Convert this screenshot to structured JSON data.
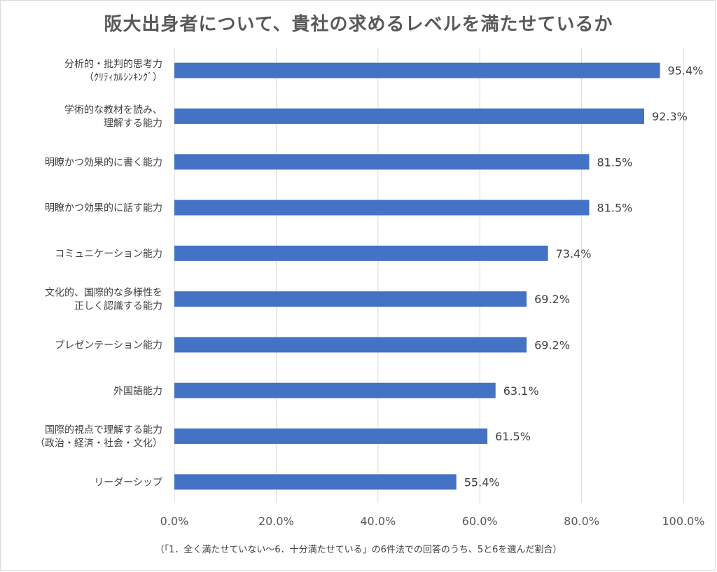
{
  "chart_data": {
    "type": "bar",
    "orientation": "horizontal",
    "title": "阪大出身者について、貴社の求めるレベルを満たせているか",
    "footnote": "（「1．全く満たせていない～6．十分満たせている」の6件法での回答のうち、5と6を選んだ割合）",
    "categories": [
      [
        "分析的・批判的思考力",
        "（ｸﾘﾃｨｶﾙｼﾝｷﾝｸﾞ）"
      ],
      [
        "学術的な教材を読み、",
        "理解する能力"
      ],
      [
        "明瞭かつ効果的に書く能力"
      ],
      [
        "明瞭かつ効果的に話す能力"
      ],
      [
        "コミュニケーション能力"
      ],
      [
        "文化的、国際的な多様性を",
        "正しく認識する能力"
      ],
      [
        "プレゼンテーション能力"
      ],
      [
        "外国語能力"
      ],
      [
        "国際的視点で理解する能力",
        "（政治・経済・社会・文化）"
      ],
      [
        "リーダーシップ"
      ]
    ],
    "values": [
      95.4,
      92.3,
      81.5,
      81.5,
      73.4,
      69.2,
      69.2,
      63.1,
      61.5,
      55.4
    ],
    "value_labels": [
      "95.4%",
      "92.3%",
      "81.5%",
      "81.5%",
      "73.4%",
      "69.2%",
      "69.2%",
      "63.1%",
      "61.5%",
      "55.4%"
    ],
    "xlim": [
      0,
      100
    ],
    "xticks": [
      0,
      20,
      40,
      60,
      80,
      100
    ],
    "xtick_labels": [
      "0.0%",
      "20.0%",
      "40.0%",
      "60.0%",
      "80.0%",
      "100.0%"
    ],
    "grid": true,
    "bar_color": "#4472c4",
    "grid_color": "#d9d9d9"
  }
}
